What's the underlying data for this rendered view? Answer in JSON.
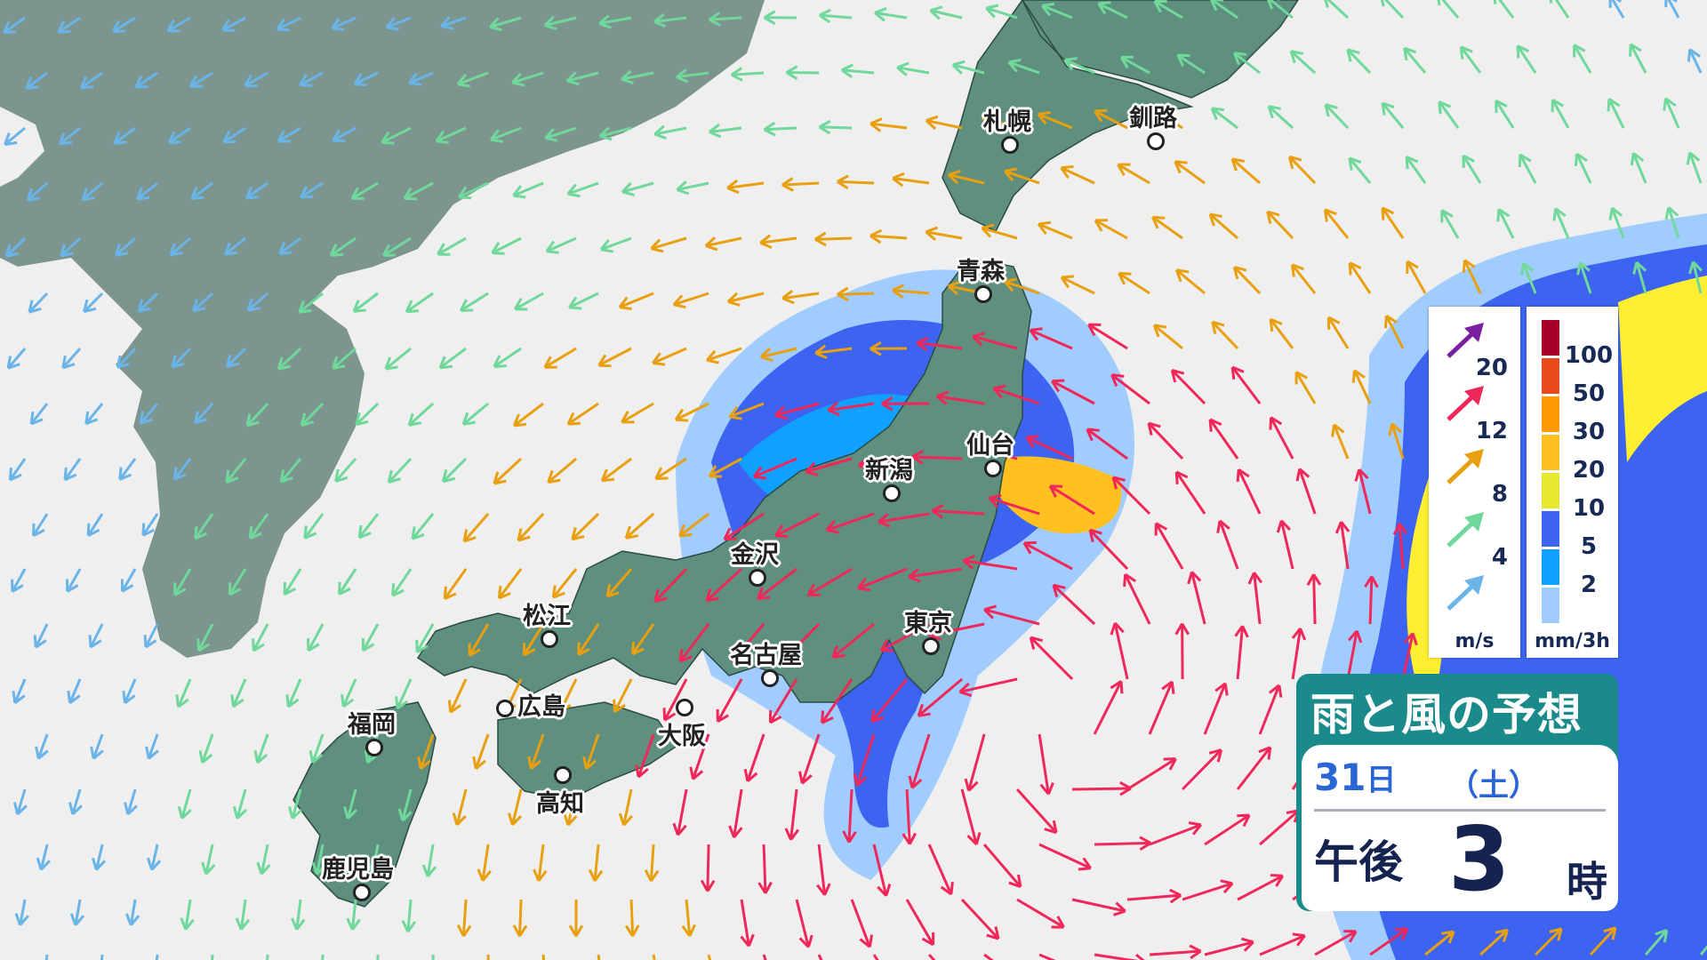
{
  "title": "雨と風の予想",
  "forecast": {
    "day": "31",
    "day_unit": "日",
    "weekday": "（土）",
    "period": "午後",
    "hour": "3",
    "hour_unit": "時"
  },
  "wind_legend": {
    "unit": "m/s",
    "levels": [
      {
        "value": "20",
        "color": "#7a1fa2"
      },
      {
        "value": "12",
        "color": "#f0285a"
      },
      {
        "value": "8",
        "color": "#e8a010"
      },
      {
        "value": "4",
        "color": "#6fd89a"
      },
      {
        "value": "",
        "color": "#6ab4e8"
      }
    ]
  },
  "rain_legend": {
    "unit": "mm/3h",
    "colors": [
      "#a8002a",
      "#e84a1a",
      "#ff9a00",
      "#ffc020",
      "#e8e830",
      "#3c64f0",
      "#10a0ff",
      "#a0ccff"
    ],
    "labels": [
      "100",
      "50",
      "30",
      "20",
      "10",
      "5",
      "2"
    ]
  },
  "cities": [
    {
      "name": "札幌"
    },
    {
      "name": "釧路"
    },
    {
      "name": "青森"
    },
    {
      "name": "仙台"
    },
    {
      "name": "新潟"
    },
    {
      "name": "金沢"
    },
    {
      "name": "松江"
    },
    {
      "name": "名古屋"
    },
    {
      "name": "東京"
    },
    {
      "name": "大阪"
    },
    {
      "name": "広島"
    },
    {
      "name": "福岡"
    },
    {
      "name": "高知"
    },
    {
      "name": "鹿児島"
    }
  ],
  "colors": {
    "sea": "#efefef",
    "continent": "#7d958f",
    "japan": "#5e8f7f",
    "title_bg": "#1a8a8a"
  }
}
